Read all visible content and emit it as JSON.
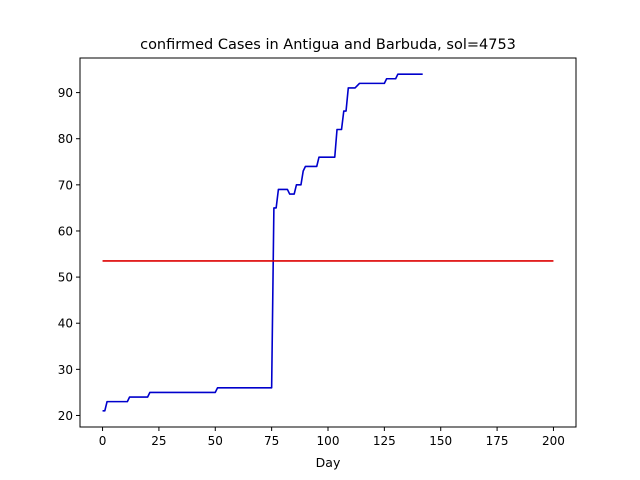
{
  "chart_data": {
    "type": "line",
    "title": "confirmed Cases in Antigua and Barbuda, sol=4753",
    "xlabel": "Day",
    "ylabel": "",
    "xlim": [
      -10,
      210
    ],
    "ylim": [
      17.5,
      97.5
    ],
    "xticks": [
      0,
      25,
      50,
      75,
      100,
      125,
      150,
      175,
      200
    ],
    "yticks": [
      20,
      30,
      40,
      50,
      60,
      70,
      80,
      90
    ],
    "grid": false,
    "legend": "none",
    "colors": {
      "cases": "#0000cc",
      "solution": "#dd0000",
      "axes": "#000000"
    },
    "series": [
      {
        "x": [
          0,
          1,
          2,
          3,
          11,
          12,
          20,
          21,
          50,
          51,
          75,
          76,
          77,
          78,
          79,
          82,
          83,
          85,
          86,
          88,
          89,
          90,
          91,
          95,
          96,
          103,
          104,
          106,
          107,
          108,
          109,
          111,
          112,
          114,
          115,
          125,
          126,
          130,
          131,
          142
        ],
        "y": [
          21,
          21,
          23,
          23,
          23,
          24,
          24,
          25,
          25,
          26,
          26,
          65,
          65,
          69,
          69,
          69,
          68,
          68,
          70,
          70,
          73,
          74,
          74,
          74,
          76,
          76,
          82,
          82,
          86,
          86,
          91,
          91,
          91,
          92,
          92,
          92,
          93,
          93,
          94,
          94
        ]
      },
      {
        "x": [
          0,
          200
        ],
        "y": [
          53.5,
          53.5
        ]
      }
    ]
  }
}
